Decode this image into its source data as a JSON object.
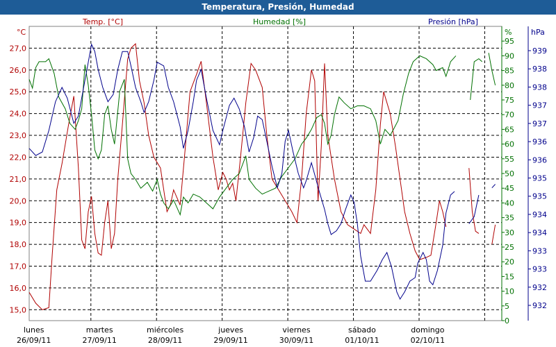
{
  "window": {
    "title": "Temperatura, Presión, Humedad"
  },
  "colors": {
    "temp": "#b00000",
    "hum": "#007000",
    "pres": "#00008b",
    "grid": "#000000",
    "title_bg": "#1e5c97"
  },
  "chart_data": {
    "type": "line",
    "title": "Temperatura, Presión, Humedad",
    "x_ticks": [
      {
        "day": "lunes",
        "date": "26/09/11"
      },
      {
        "day": "martes",
        "date": "27/09/11"
      },
      {
        "day": "miércoles",
        "date": "28/09/11"
      },
      {
        "day": "jueves",
        "date": "29/09/11"
      },
      {
        "day": "viernes",
        "date": "30/09/11"
      },
      {
        "day": "sábado",
        "date": "01/10/11"
      },
      {
        "day": "domingo",
        "date": "02/10/11"
      }
    ],
    "x_range": [
      0,
      7.2
    ],
    "axes": {
      "temp": {
        "unit": "°C",
        "label": "Temp. [°C]",
        "range": [
          14.5,
          28.0
        ],
        "ticks": [
          "15,0",
          "16,0",
          "17,0",
          "18,0",
          "19,0",
          "20,0",
          "21,0",
          "22,0",
          "23,0",
          "24,0",
          "25,0",
          "26,0",
          "27,0"
        ]
      },
      "hum": {
        "unit": "%",
        "label": "Humedad [%]",
        "range": [
          0,
          100
        ],
        "ticks": [
          "0",
          "5",
          "10",
          "15",
          "20",
          "25",
          "30",
          "35",
          "40",
          "45",
          "50",
          "55",
          "60",
          "65",
          "70",
          "75",
          "80",
          "85",
          "90",
          "95"
        ]
      },
      "pres": {
        "unit": "hPa",
        "label": "Presión [hPa]",
        "range": [
          931.5,
          939.7
        ],
        "ticks": [
          "932",
          "932",
          "933",
          "933",
          "934",
          "934",
          "935",
          "935",
          "936",
          "936",
          "937",
          "937",
          "938",
          "938",
          "939"
        ]
      }
    },
    "grid": true,
    "series": [
      {
        "name": "Temp. [°C]",
        "axis": "temp",
        "points": [
          [
            0,
            15.8
          ],
          [
            0.1,
            15.3
          ],
          [
            0.2,
            15.0
          ],
          [
            0.3,
            15.1
          ],
          [
            0.35,
            17.5
          ],
          [
            0.42,
            20.5
          ],
          [
            0.5,
            21.7
          ],
          [
            0.6,
            23.5
          ],
          [
            0.68,
            24.8
          ],
          [
            0.75,
            21.5
          ],
          [
            0.8,
            18.2
          ],
          [
            0.85,
            17.8
          ],
          [
            0.9,
            19.5
          ],
          [
            0.95,
            20.2
          ],
          [
            1.0,
            18.5
          ],
          [
            1.05,
            17.6
          ],
          [
            1.1,
            17.5
          ],
          [
            1.15,
            19.0
          ],
          [
            1.2,
            20.0
          ],
          [
            1.25,
            17.8
          ],
          [
            1.3,
            18.5
          ],
          [
            1.35,
            21.0
          ],
          [
            1.42,
            23.5
          ],
          [
            1.5,
            26.5
          ],
          [
            1.55,
            27.0
          ],
          [
            1.62,
            27.2
          ],
          [
            1.68,
            25.5
          ],
          [
            1.75,
            24.5
          ],
          [
            1.82,
            23.0
          ],
          [
            1.9,
            22.0
          ],
          [
            2.0,
            21.5
          ],
          [
            2.05,
            20.5
          ],
          [
            2.1,
            19.5
          ],
          [
            2.15,
            19.8
          ],
          [
            2.2,
            20.5
          ],
          [
            2.3,
            19.8
          ],
          [
            2.38,
            22.5
          ],
          [
            2.45,
            25.0
          ],
          [
            2.55,
            25.8
          ],
          [
            2.62,
            26.4
          ],
          [
            2.7,
            24.5
          ],
          [
            2.8,
            22.0
          ],
          [
            2.88,
            20.5
          ],
          [
            2.95,
            21.3
          ],
          [
            3.0,
            21.0
          ],
          [
            3.05,
            20.5
          ],
          [
            3.1,
            20.8
          ],
          [
            3.15,
            20.0
          ],
          [
            3.22,
            22.0
          ],
          [
            3.3,
            24.5
          ],
          [
            3.38,
            26.3
          ],
          [
            3.45,
            26.0
          ],
          [
            3.55,
            25.2
          ],
          [
            3.62,
            23.0
          ],
          [
            3.7,
            21.0
          ],
          [
            3.8,
            20.5
          ],
          [
            3.9,
            20.0
          ],
          [
            4.0,
            19.5
          ],
          [
            4.08,
            19.0
          ],
          [
            4.15,
            21.0
          ],
          [
            4.22,
            24.0
          ],
          [
            4.3,
            26.0
          ],
          [
            4.35,
            25.5
          ],
          [
            4.4,
            20.0
          ],
          [
            4.45,
            22.5
          ],
          [
            4.5,
            26.3
          ],
          [
            4.55,
            23.0
          ],
          [
            4.65,
            21.0
          ],
          [
            4.75,
            19.5
          ],
          [
            4.85,
            18.9
          ],
          [
            4.95,
            18.7
          ],
          [
            5.05,
            18.5
          ],
          [
            5.1,
            18.9
          ],
          [
            5.2,
            18.5
          ],
          [
            5.28,
            20.5
          ],
          [
            5.35,
            23.5
          ],
          [
            5.4,
            25.0
          ],
          [
            5.5,
            24.0
          ],
          [
            5.58,
            22.5
          ],
          [
            5.65,
            21.0
          ],
          [
            5.72,
            19.5
          ],
          [
            5.8,
            18.5
          ],
          [
            5.88,
            17.7
          ],
          [
            5.95,
            17.3
          ],
          [
            6.05,
            17.4
          ],
          [
            6.12,
            17.5
          ],
          [
            6.2,
            19.0
          ],
          [
            6.25,
            20.0
          ],
          [
            6.3,
            19.5
          ],
          [
            6.35,
            18.8
          ],
          null,
          [
            6.7,
            21.5
          ],
          [
            6.75,
            19.5
          ],
          [
            6.8,
            18.6
          ],
          [
            6.85,
            18.5
          ],
          null,
          [
            7.05,
            18.0
          ],
          [
            7.1,
            18.9
          ]
        ]
      },
      {
        "name": "Humedad [%]",
        "axis": "hum",
        "points": [
          [
            0,
            82
          ],
          [
            0.05,
            79
          ],
          [
            0.1,
            86
          ],
          [
            0.15,
            88
          ],
          [
            0.25,
            88
          ],
          [
            0.3,
            89
          ],
          [
            0.38,
            84
          ],
          [
            0.45,
            76
          ],
          [
            0.55,
            72
          ],
          [
            0.62,
            67
          ],
          [
            0.7,
            65
          ],
          [
            0.75,
            68
          ],
          [
            0.8,
            72
          ],
          [
            0.85,
            87
          ],
          [
            0.9,
            80
          ],
          [
            0.95,
            70
          ],
          [
            1.0,
            58
          ],
          [
            1.05,
            55
          ],
          [
            1.1,
            58
          ],
          [
            1.15,
            70
          ],
          [
            1.2,
            73
          ],
          [
            1.25,
            65
          ],
          [
            1.3,
            60
          ],
          [
            1.38,
            78
          ],
          [
            1.45,
            82
          ],
          [
            1.5,
            55
          ],
          [
            1.55,
            50
          ],
          [
            1.62,
            48
          ],
          [
            1.7,
            45
          ],
          [
            1.8,
            47
          ],
          [
            1.88,
            44
          ],
          [
            1.95,
            48
          ],
          [
            2.0,
            43
          ],
          [
            2.05,
            40
          ],
          [
            2.12,
            38
          ],
          [
            2.2,
            41
          ],
          [
            2.3,
            36
          ],
          [
            2.35,
            42
          ],
          [
            2.42,
            40
          ],
          [
            2.5,
            43
          ],
          [
            2.6,
            42
          ],
          [
            2.7,
            40
          ],
          [
            2.8,
            38
          ],
          [
            2.9,
            42
          ],
          [
            3.0,
            45
          ],
          [
            3.1,
            48
          ],
          [
            3.2,
            50
          ],
          [
            3.3,
            56
          ],
          [
            3.35,
            48
          ],
          [
            3.45,
            45
          ],
          [
            3.55,
            43
          ],
          [
            3.65,
            44
          ],
          [
            3.75,
            45
          ],
          [
            3.85,
            49
          ],
          [
            3.95,
            52
          ],
          [
            4.05,
            55
          ],
          [
            4.15,
            60
          ],
          [
            4.22,
            62
          ],
          [
            4.3,
            65
          ],
          [
            4.38,
            69
          ],
          [
            4.45,
            70
          ],
          [
            4.5,
            67
          ],
          [
            4.55,
            60
          ],
          [
            4.6,
            63
          ],
          [
            4.65,
            70
          ],
          [
            4.72,
            76
          ],
          [
            4.8,
            74
          ],
          [
            4.9,
            72
          ],
          [
            5.0,
            73
          ],
          [
            5.1,
            73
          ],
          [
            5.2,
            72
          ],
          [
            5.28,
            68
          ],
          [
            5.35,
            60
          ],
          [
            5.42,
            65
          ],
          [
            5.5,
            63
          ],
          [
            5.55,
            65
          ],
          [
            5.62,
            68
          ],
          [
            5.7,
            77
          ],
          [
            5.78,
            84
          ],
          [
            5.85,
            88
          ],
          [
            5.95,
            90
          ],
          [
            6.05,
            89
          ],
          [
            6.15,
            87
          ],
          [
            6.2,
            85
          ],
          [
            6.3,
            86
          ],
          [
            6.35,
            83
          ],
          [
            6.42,
            88
          ],
          [
            6.5,
            90
          ],
          null,
          [
            6.72,
            75
          ],
          [
            6.78,
            88
          ],
          [
            6.85,
            89
          ],
          [
            6.9,
            88
          ],
          null,
          [
            7.0,
            91
          ],
          [
            7.05,
            85
          ],
          [
            7.1,
            80
          ]
        ]
      },
      {
        "name": "Presión [hPa]",
        "axis": "pres",
        "points": [
          [
            0,
            936.3
          ],
          [
            0.1,
            936.1
          ],
          [
            0.2,
            936.2
          ],
          [
            0.3,
            936.8
          ],
          [
            0.4,
            937.6
          ],
          [
            0.5,
            938.0
          ],
          [
            0.58,
            937.7
          ],
          [
            0.68,
            937.0
          ],
          [
            0.75,
            937.2
          ],
          [
            0.82,
            937.9
          ],
          [
            0.9,
            938.7
          ],
          [
            0.95,
            939.2
          ],
          [
            1.0,
            939.0
          ],
          [
            1.05,
            938.5
          ],
          [
            1.12,
            938.0
          ],
          [
            1.2,
            937.6
          ],
          [
            1.28,
            937.8
          ],
          [
            1.35,
            938.5
          ],
          [
            1.42,
            939.0
          ],
          [
            1.5,
            939.0
          ],
          [
            1.55,
            938.6
          ],
          [
            1.62,
            938.0
          ],
          [
            1.7,
            937.6
          ],
          [
            1.75,
            937.3
          ],
          [
            1.82,
            937.6
          ],
          [
            1.9,
            938.2
          ],
          [
            1.95,
            938.7
          ],
          [
            2.05,
            938.6
          ],
          [
            2.12,
            938.0
          ],
          [
            2.2,
            937.6
          ],
          [
            2.3,
            936.9
          ],
          [
            2.35,
            936.3
          ],
          [
            2.42,
            936.8
          ],
          [
            2.5,
            937.6
          ],
          [
            2.55,
            938.2
          ],
          [
            2.62,
            938.5
          ],
          [
            2.7,
            937.7
          ],
          [
            2.8,
            936.8
          ],
          [
            2.9,
            936.4
          ],
          [
            2.95,
            936.8
          ],
          [
            3.05,
            937.5
          ],
          [
            3.12,
            937.7
          ],
          [
            3.2,
            937.4
          ],
          [
            3.28,
            936.9
          ],
          [
            3.35,
            936.2
          ],
          [
            3.42,
            936.6
          ],
          [
            3.48,
            937.2
          ],
          [
            3.55,
            937.1
          ],
          [
            3.62,
            936.5
          ],
          [
            3.7,
            935.8
          ],
          [
            3.78,
            935.2
          ],
          [
            3.85,
            935.6
          ],
          [
            3.9,
            936.5
          ],
          [
            3.95,
            936.8
          ],
          [
            4.02,
            936.2
          ],
          [
            4.1,
            935.6
          ],
          [
            4.18,
            935.2
          ],
          [
            4.22,
            935.4
          ],
          [
            4.3,
            935.9
          ],
          [
            4.36,
            935.5
          ],
          [
            4.42,
            935.1
          ],
          [
            4.5,
            934.6
          ],
          [
            4.55,
            934.2
          ],
          [
            4.6,
            933.9
          ],
          [
            4.68,
            934.0
          ],
          [
            4.75,
            934.2
          ],
          [
            4.82,
            934.6
          ],
          [
            4.9,
            935.0
          ],
          [
            4.95,
            934.8
          ],
          [
            5.0,
            934.2
          ],
          [
            5.05,
            933.3
          ],
          [
            5.12,
            932.6
          ],
          [
            5.2,
            932.6
          ],
          [
            5.3,
            932.9
          ],
          [
            5.38,
            933.2
          ],
          [
            5.45,
            933.4
          ],
          [
            5.52,
            933.0
          ],
          [
            5.6,
            932.3
          ],
          [
            5.65,
            932.1
          ],
          [
            5.72,
            932.3
          ],
          [
            5.8,
            932.6
          ],
          [
            5.88,
            932.7
          ],
          [
            5.92,
            933.1
          ],
          [
            6.0,
            933.4
          ],
          [
            6.05,
            933.2
          ],
          [
            6.1,
            932.6
          ],
          [
            6.15,
            932.5
          ],
          [
            6.22,
            932.9
          ],
          [
            6.3,
            933.6
          ],
          [
            6.35,
            934.5
          ],
          [
            6.42,
            935.0
          ],
          [
            6.48,
            935.1
          ],
          null,
          [
            6.7,
            934.2
          ],
          [
            6.78,
            934.4
          ],
          [
            6.85,
            935.0
          ],
          null,
          [
            7.05,
            935.2
          ],
          [
            7.1,
            935.3
          ]
        ]
      }
    ]
  }
}
